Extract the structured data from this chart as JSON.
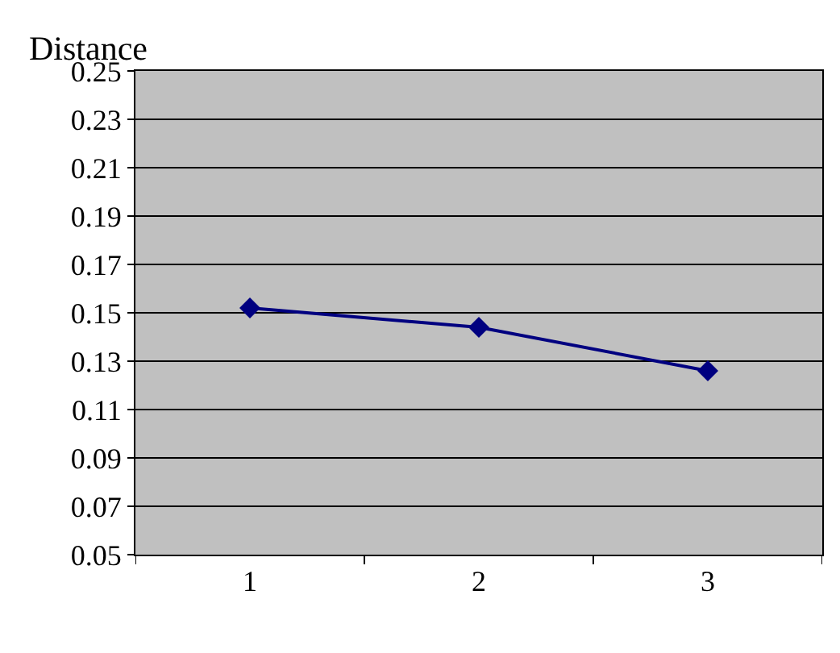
{
  "chart_data": {
    "type": "line",
    "ylabel": "Distance",
    "categories": [
      "1",
      "2",
      "3"
    ],
    "series": [
      {
        "color": "#000080",
        "values": [
          0.152,
          0.144,
          0.126
        ]
      }
    ],
    "ylim": [
      0.05,
      0.25
    ],
    "yticks": [
      0.05,
      0.07,
      0.09,
      0.11,
      0.13,
      0.15,
      0.17,
      0.19,
      0.21,
      0.23,
      0.25
    ],
    "grid": "y",
    "legend": false,
    "marker": "diamond",
    "line_style": "solid"
  }
}
